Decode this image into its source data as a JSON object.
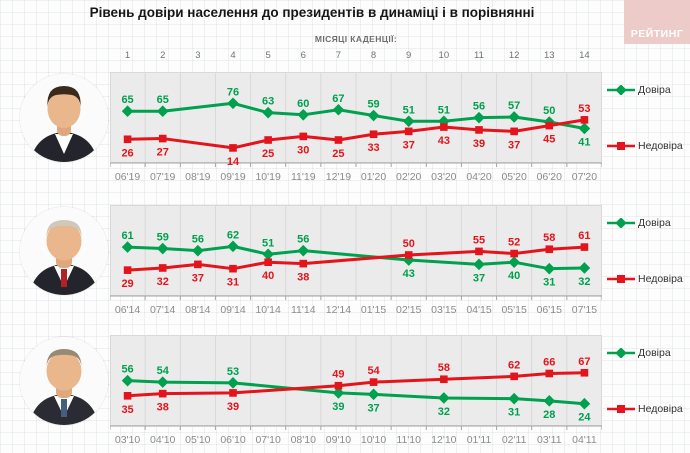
{
  "page": {
    "title": "Рівень довіри населення до президентів в динаміці і в порівнянні",
    "subtitle": "МІСЯЦІ КАДЕНЦІЇ:",
    "logo_text": "РЕЙТИНГ",
    "month_numbers": [
      "1",
      "2",
      "3",
      "4",
      "5",
      "6",
      "7",
      "8",
      "9",
      "10",
      "11",
      "12",
      "13",
      "14"
    ]
  },
  "legend": {
    "trust_label": "Довіра",
    "distrust_label": "Недовіра"
  },
  "colors": {
    "trust": "#00a14e",
    "distrust": "#e4141c",
    "panel_bg": "#ebebeb",
    "panel_grid": "#d9d9d9",
    "axis": "#a3a3a3",
    "axis_label": "#8c8c8c",
    "logo_bg": "#edcbc9"
  },
  "chart_data": [
    {
      "type": "line",
      "president_icon": "zelensky-portrait",
      "categories": [
        "06'19",
        "07'19",
        "08'19",
        "09'19",
        "10'19",
        "11'19",
        "12'19",
        "01'20",
        "02'20",
        "03'20",
        "04'20",
        "05'20",
        "06'20",
        "07'20"
      ],
      "series": [
        {
          "name": "Довіра",
          "marker": "diamond",
          "color": "#00a14e",
          "values": [
            65,
            65,
            null,
            76,
            63,
            60,
            67,
            59,
            51,
            51,
            56,
            57,
            50,
            41
          ]
        },
        {
          "name": "Недовіра",
          "marker": "square",
          "color": "#e4141c",
          "values": [
            26,
            27,
            null,
            14,
            25,
            30,
            25,
            33,
            37,
            43,
            39,
            37,
            45,
            53
          ]
        }
      ],
      "ylim": [
        0,
        100
      ],
      "grid": "vertical",
      "legend_position": "right"
    },
    {
      "type": "line",
      "president_icon": "poroshenko-portrait",
      "categories": [
        "06'14",
        "07'14",
        "08'14",
        "09'14",
        "10'14",
        "11'14",
        "12'14",
        "01'15",
        "02'15",
        "03'15",
        "04'15",
        "05'15",
        "06'15",
        "07'15"
      ],
      "series": [
        {
          "name": "Довіра",
          "marker": "diamond",
          "color": "#00a14e",
          "values": [
            61,
            59,
            56,
            62,
            51,
            56,
            null,
            null,
            43,
            null,
            37,
            40,
            31,
            32
          ]
        },
        {
          "name": "Недовіра",
          "marker": "square",
          "color": "#e4141c",
          "values": [
            29,
            32,
            37,
            31,
            40,
            38,
            null,
            null,
            50,
            null,
            55,
            52,
            58,
            61
          ]
        }
      ],
      "ylim": [
        0,
        100
      ],
      "grid": "vertical",
      "legend_position": "right"
    },
    {
      "type": "line",
      "president_icon": "yanukovych-portrait",
      "categories": [
        "03'10",
        "04'10",
        "05'10",
        "06'10",
        "07'10",
        "08'10",
        "09'10",
        "10'10",
        "11'10",
        "12'10",
        "01'11",
        "02'11",
        "03'11",
        "04'11"
      ],
      "series": [
        {
          "name": "Довіра",
          "marker": "diamond",
          "color": "#00a14e",
          "values": [
            56,
            54,
            null,
            53,
            null,
            null,
            39,
            37,
            null,
            32,
            null,
            31,
            28,
            24
          ]
        },
        {
          "name": "Недовіра",
          "marker": "square",
          "color": "#e4141c",
          "values": [
            35,
            38,
            null,
            39,
            null,
            null,
            49,
            54,
            null,
            58,
            null,
            62,
            66,
            67
          ]
        }
      ],
      "ylim": [
        0,
        100
      ],
      "grid": "vertical",
      "legend_position": "right"
    }
  ]
}
